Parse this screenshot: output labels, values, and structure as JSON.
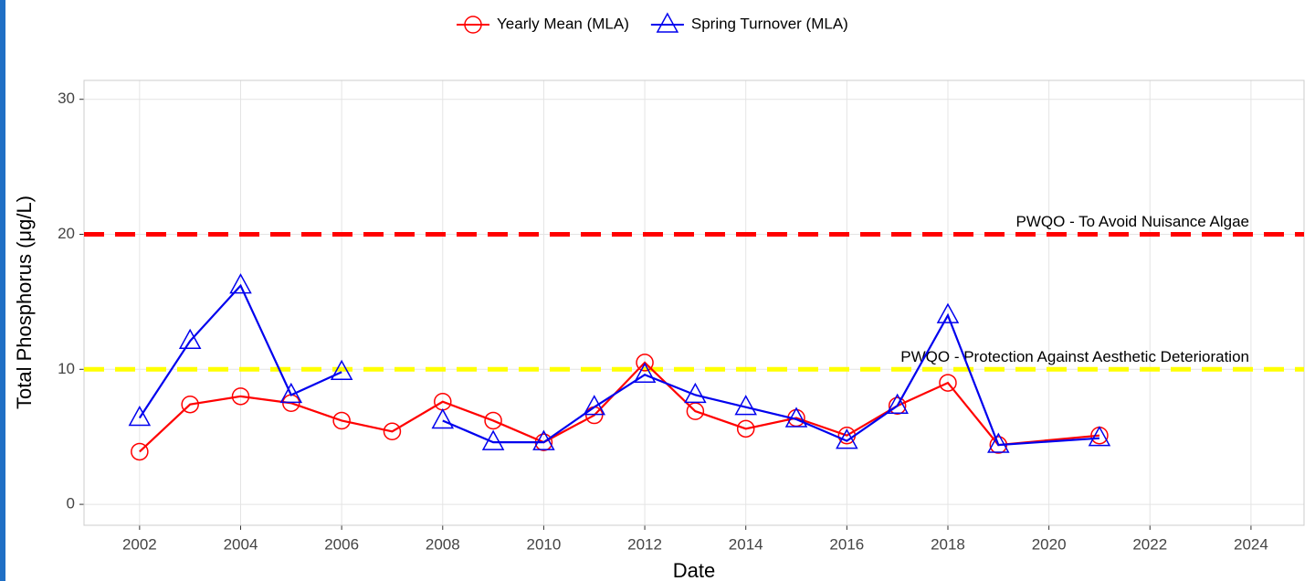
{
  "chart_data": {
    "type": "line",
    "x": [
      2002,
      2003,
      2004,
      2005,
      2006,
      2007,
      2008,
      2009,
      2010,
      2011,
      2012,
      2013,
      2014,
      2015,
      2016,
      2017,
      2018,
      2019,
      2021
    ],
    "series": [
      {
        "name": "Yearly Mean (MLA)",
        "color": "#ff0000",
        "marker": "circle",
        "values": [
          3.9,
          7.4,
          8.0,
          7.5,
          6.2,
          5.4,
          7.6,
          6.2,
          4.6,
          6.6,
          10.5,
          6.9,
          5.6,
          6.4,
          5.1,
          7.3,
          9.0,
          4.4,
          5.1
        ]
      },
      {
        "name": "Spring Turnover (MLA)",
        "color": "#0000ee",
        "marker": "triangle",
        "values": [
          6.4,
          12.1,
          16.2,
          8.1,
          9.8,
          null,
          6.2,
          4.6,
          4.6,
          7.2,
          9.6,
          8.1,
          7.2,
          6.3,
          4.7,
          7.3,
          14.0,
          4.4,
          4.9
        ]
      }
    ],
    "reference_lines": [
      {
        "value": 20,
        "label": "PWQO - To Avoid Nuisance Algae",
        "color": "#ff0000"
      },
      {
        "value": 10,
        "label": "PWQO - Protection Against Aesthetic Deterioration",
        "color": "#ffff00"
      }
    ],
    "x_label": "Date",
    "y_label": "Total Phosphorus (μg/L)",
    "xlim": [
      2000.9,
      2025.05
    ],
    "xticks": [
      2002,
      2004,
      2006,
      2008,
      2010,
      2012,
      2014,
      2016,
      2018,
      2020,
      2022,
      2024
    ],
    "ylim": [
      -1.55,
      31.4
    ],
    "yticks": [
      0,
      10,
      20,
      30
    ],
    "grid": true,
    "legend": "top"
  }
}
